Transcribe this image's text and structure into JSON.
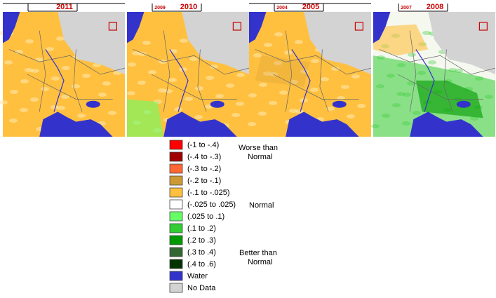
{
  "panels": [
    {
      "year": "2011"
    },
    {
      "prior_year": "2009",
      "year": "2010"
    },
    {
      "prior_year": "2004",
      "year": "2005"
    },
    {
      "prior_year": "2007",
      "year": "2008"
    }
  ],
  "legend": {
    "items": [
      {
        "label": "(-1 to -.4)",
        "color": "#ff0000"
      },
      {
        "label": "(-.4 to -.3)",
        "color": "#a00000"
      },
      {
        "label": "(-.3 to -.2)",
        "color": "#ff6633"
      },
      {
        "label": "(-.2 to -.1)",
        "color": "#cc9933"
      },
      {
        "label": "(-.1 to -.025)",
        "color": "#ffc040"
      },
      {
        "label": "(-.025 to .025)",
        "color": "#ffffff"
      },
      {
        "label": "(.025 to .1)",
        "color": "#66ff66"
      },
      {
        "label": "(.1 to .2)",
        "color": "#33cc33"
      },
      {
        "label": "(.2 to .3)",
        "color": "#009900"
      },
      {
        "label": "(.3 to .4)",
        "color": "#336633"
      },
      {
        "label": "(.4 to .6)",
        "color": "#003300"
      },
      {
        "label": "Water",
        "color": "#3333cc"
      },
      {
        "label": "No Data",
        "color": "#d3d3d3"
      }
    ],
    "groups": [
      {
        "lines": [
          "Worse than",
          "Normal"
        ]
      },
      {
        "lines": [
          "Normal"
        ]
      },
      {
        "lines": [
          "Better than",
          "Normal"
        ]
      }
    ]
  }
}
